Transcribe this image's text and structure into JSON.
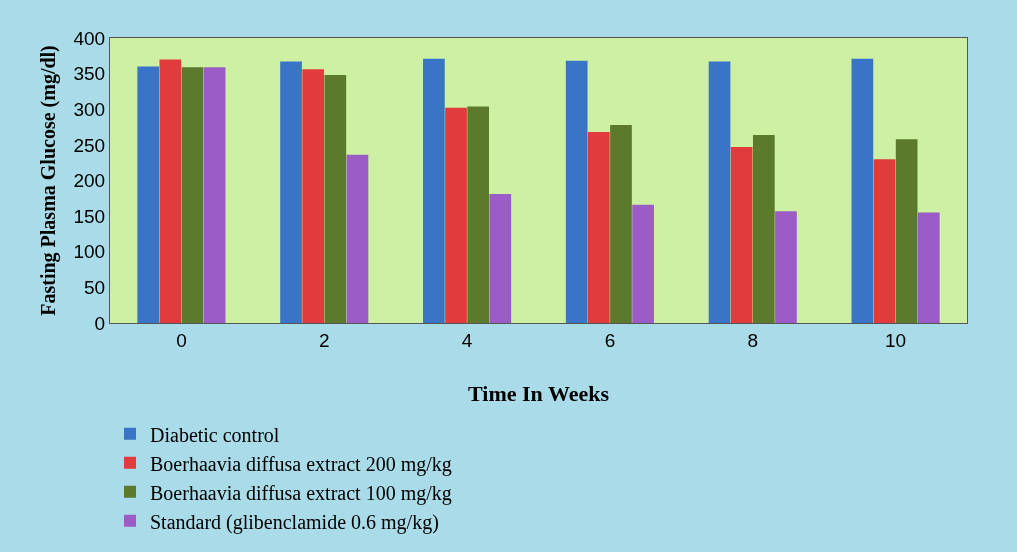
{
  "chart_data": {
    "type": "bar",
    "xlabel": "Time In Weeks",
    "ylabel": "Fasting Plasma Glucose (mg/dl)",
    "categories": [
      "0",
      "2",
      "4",
      "6",
      "8",
      "10"
    ],
    "series": [
      {
        "name": "Diabetic control",
        "color": "#3a74c6",
        "values": [
          360,
          367,
          371,
          368,
          367,
          371
        ]
      },
      {
        "name": "Boerhaavia diffusa extract 200 mg/kg",
        "color": "#e23b3b",
        "values": [
          370,
          356,
          302,
          268,
          247,
          230
        ]
      },
      {
        "name": "Boerhaavia diffusa extract 100 mg/kg",
        "color": "#5b7a2c",
        "values": [
          359,
          348,
          304,
          278,
          264,
          258
        ]
      },
      {
        "name": "Standard (glibenclamide 0.6 mg/kg)",
        "color": "#9b5cc6",
        "values": [
          359,
          236,
          181,
          166,
          157,
          155
        ]
      }
    ],
    "ylim": [
      0,
      400
    ],
    "yticks": [
      0,
      50,
      100,
      150,
      200,
      250,
      300,
      350,
      400
    ],
    "grid": false,
    "legend": "bottom"
  }
}
